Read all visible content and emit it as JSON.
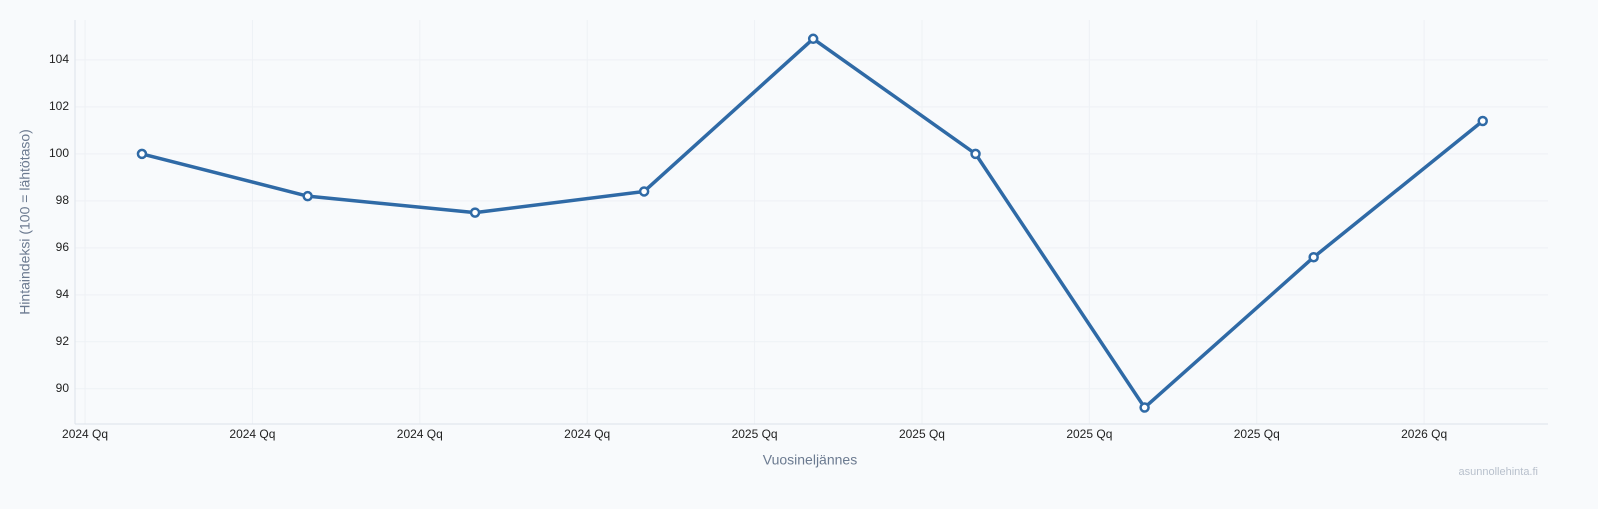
{
  "chart_data": {
    "type": "line",
    "x_label": "Vuosineljännes",
    "y_label": "Hintaindeksi (100 = lähtötaso)",
    "watermark": "asunnollehinta.fi",
    "x": [
      0.34,
      1.33,
      2.33,
      3.34,
      4.35,
      5.32,
      6.33,
      7.34,
      8.35
    ],
    "series": [
      {
        "name": "Hintaindeksi",
        "color": "#2f6aa6",
        "values": [
          100,
          98.2,
          97.5,
          98.4,
          104.9,
          100,
          89.2,
          95.6,
          101.4
        ]
      }
    ],
    "xlim": [
      -0.06,
      8.74
    ],
    "xticks": [
      {
        "value": 0,
        "label": "2024 Qq"
      },
      {
        "value": 1,
        "label": "2024 Qq"
      },
      {
        "value": 2,
        "label": "2024 Qq"
      },
      {
        "value": 3,
        "label": "2024 Qq"
      },
      {
        "value": 4,
        "label": "2025 Qq"
      },
      {
        "value": 5,
        "label": "2025 Qq"
      },
      {
        "value": 6,
        "label": "2025 Qq"
      },
      {
        "value": 7,
        "label": "2025 Qq"
      },
      {
        "value": 8,
        "label": "2026 Qq"
      }
    ],
    "ylim": [
      88.5,
      105.7
    ],
    "yticks": [
      90,
      92,
      94,
      96,
      98,
      100,
      102,
      104
    ],
    "grid": true
  }
}
